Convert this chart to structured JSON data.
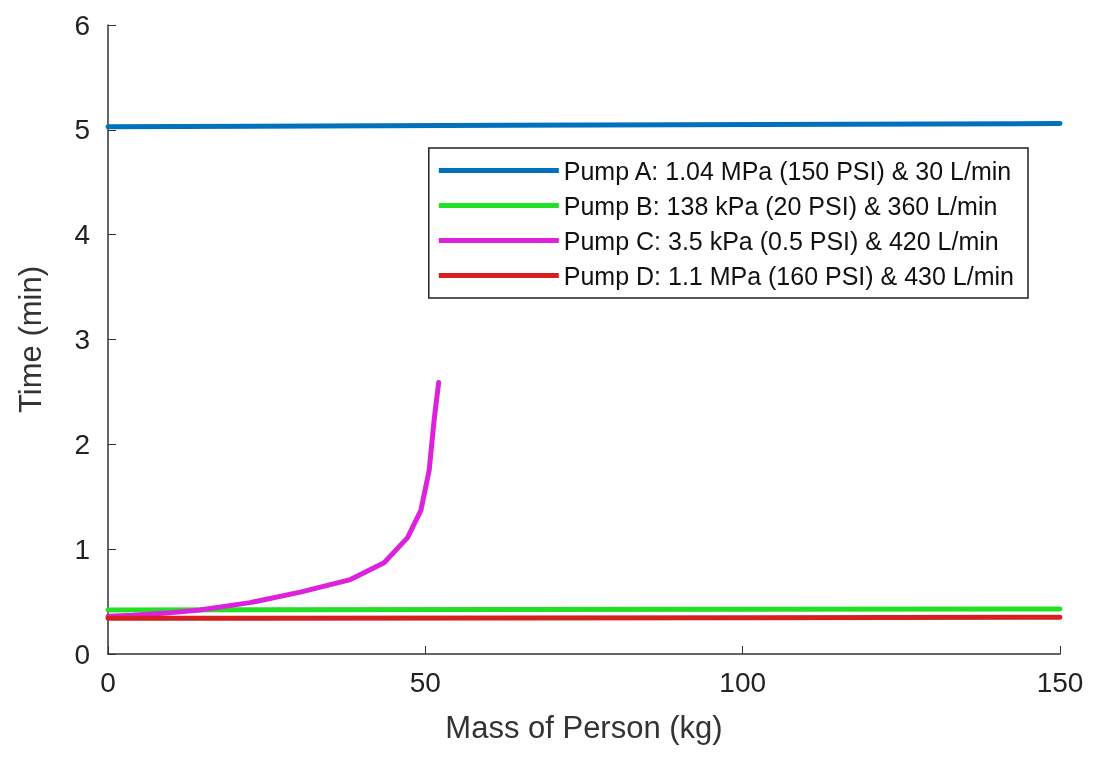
{
  "chart_data": {
    "type": "line",
    "xlabel": "Mass of Person (kg)",
    "ylabel": "Time (min)",
    "xlim": [
      0,
      150
    ],
    "xticks": [
      0,
      50,
      100,
      150
    ],
    "ylim": [
      0,
      6
    ],
    "yticks": [
      0,
      1,
      2,
      3,
      4,
      5,
      6
    ],
    "grid": false,
    "legend": "top right",
    "marker": "none",
    "line_style": "solid",
    "series": [
      {
        "name": "Pump A: 1.04 MPa (150 PSI) & 30 L/min",
        "color": "#0072bd",
        "x": [
          0,
          150
        ],
        "values": [
          5.03,
          5.06
        ]
      },
      {
        "name": "Pump B: 138 kPa (20 PSI) & 360 L/min",
        "color": "#22e022",
        "x": [
          0,
          150
        ],
        "values": [
          0.42,
          0.43
        ]
      },
      {
        "name": "Pump C: 3.5 kPa (0.5 PSI) & 420 L/min",
        "color": "#dd22dd",
        "x": [
          0,
          4,
          9.2,
          14.5,
          22.4,
          30.3,
          38.2,
          43.5,
          47.2,
          49.3,
          50.6,
          51.4,
          52.1
        ],
        "values": [
          0.36,
          0.37,
          0.39,
          0.42,
          0.49,
          0.59,
          0.71,
          0.87,
          1.11,
          1.37,
          1.75,
          2.24,
          2.59
        ]
      },
      {
        "name": "Pump D: 1.1 MPa (160 PSI) & 430 L/min",
        "color": "#d62020",
        "x": [
          0,
          150
        ],
        "values": [
          0.34,
          0.35
        ]
      }
    ]
  }
}
